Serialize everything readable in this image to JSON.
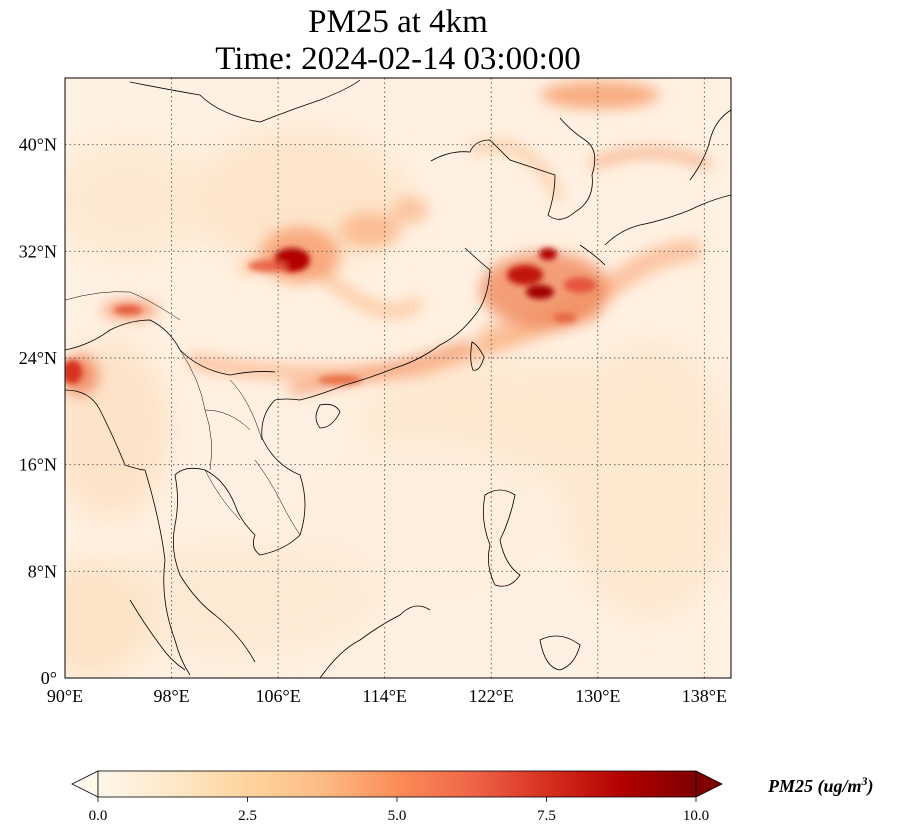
{
  "title": {
    "line1": "PM25 at 4km",
    "line2": "Time: 2024-02-14 03:00:00"
  },
  "map": {
    "extent": {
      "lon_min": 90,
      "lon_max": 140,
      "lat_min": 0,
      "lat_max": 45
    },
    "x_ticks": [
      {
        "lon": 90,
        "label": "90°E"
      },
      {
        "lon": 98,
        "label": "98°E"
      },
      {
        "lon": 106,
        "label": "106°E"
      },
      {
        "lon": 114,
        "label": "114°E"
      },
      {
        "lon": 122,
        "label": "122°E"
      },
      {
        "lon": 130,
        "label": "130°E"
      },
      {
        "lon": 138,
        "label": "138°E"
      }
    ],
    "y_ticks": [
      {
        "lat": 0,
        "label": "0°"
      },
      {
        "lat": 8,
        "label": "8°N"
      },
      {
        "lat": 16,
        "label": "16°N"
      },
      {
        "lat": 24,
        "label": "24°N"
      },
      {
        "lat": 32,
        "label": "32°N"
      },
      {
        "lat": 40,
        "label": "40°N"
      }
    ],
    "gridlines": "dotted",
    "colormap": {
      "name": "OrRd",
      "colors": [
        "#fff7ec",
        "#fee8c8",
        "#fdd49e",
        "#fdbb84",
        "#fc8d59",
        "#ef6548",
        "#d7301f",
        "#b30000",
        "#7f0000"
      ]
    },
    "hotspots": [
      {
        "name": "sichuan-basin",
        "lon": 107.0,
        "lat": 31.5,
        "value": 9.5
      },
      {
        "name": "east-china-sea-plume",
        "lon": 126.0,
        "lat": 30.0,
        "value": 9.0
      },
      {
        "name": "yellow-sea-plume",
        "lon": 126.5,
        "lat": 31.5,
        "value": 8.5
      },
      {
        "name": "south-china-coast",
        "lon": 117.0,
        "lat": 23.5,
        "value": 5.5
      },
      {
        "name": "myanmar-north",
        "lon": 94.0,
        "lat": 27.5,
        "value": 5.5
      },
      {
        "name": "bangladesh",
        "lon": 90.5,
        "lat": 22.5,
        "value": 6.0
      },
      {
        "name": "japan-arc",
        "lon": 133.0,
        "lat": 38.5,
        "value": 4.5
      },
      {
        "name": "korea-north",
        "lon": 129.0,
        "lat": 44.0,
        "value": 5.0
      },
      {
        "name": "central-china",
        "lon": 114.0,
        "lat": 34.0,
        "value": 3.5
      },
      {
        "name": "ryukyu-band",
        "lon": 131.0,
        "lat": 27.0,
        "value": 4.5
      }
    ]
  },
  "colorbar": {
    "min": 0.0,
    "max": 10.0,
    "extend": "both",
    "ticks": [
      {
        "value": 0.0,
        "label": "0.0"
      },
      {
        "value": 2.5,
        "label": "2.5"
      },
      {
        "value": 5.0,
        "label": "5.0"
      },
      {
        "value": 7.5,
        "label": "7.5"
      },
      {
        "value": 10.0,
        "label": "10.0"
      }
    ],
    "label_var": "PM25",
    "label_unit_open": "(ug/m",
    "label_unit_exp": "3",
    "label_unit_close": ")"
  }
}
